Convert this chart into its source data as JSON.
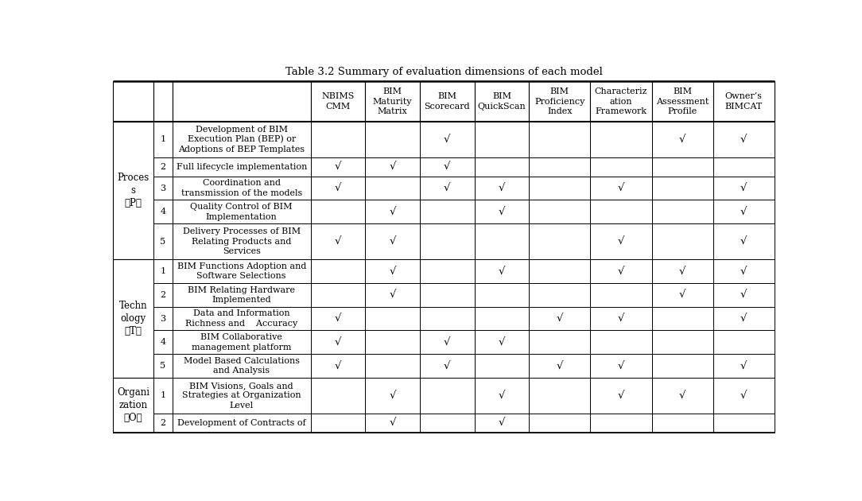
{
  "title": "Table 3.2 Summary of evaluation dimensions of each model",
  "col_headers": [
    "NBIMS\nCMM",
    "BIM\nMaturity\nMatrix",
    "BIM\nScorecard",
    "BIM\nQuickScan",
    "BIM\nProficiency\nIndex",
    "Characteriz\nation\nFramework",
    "BIM\nAssessment\nProfile",
    "Owner’s\nBIMCAT"
  ],
  "row_groups": [
    {
      "group_label": "Proces\ns\n（P）",
      "rows": [
        {
          "num": "1",
          "desc": "Development of BIM\nExecution Plan (BEP) or\nAdoptions of BEP Templates",
          "checks": [
            0,
            0,
            1,
            0,
            0,
            0,
            1,
            1
          ]
        },
        {
          "num": "2",
          "desc": "Full lifecycle implementation",
          "checks": [
            1,
            1,
            1,
            0,
            0,
            0,
            0,
            0
          ]
        },
        {
          "num": "3",
          "desc": "Coordination and\ntransmission of the models",
          "checks": [
            1,
            0,
            1,
            1,
            0,
            1,
            0,
            1
          ]
        },
        {
          "num": "4",
          "desc": "Quality Control of BIM\nImplementation",
          "checks": [
            0,
            1,
            0,
            1,
            0,
            0,
            0,
            1
          ]
        },
        {
          "num": "5",
          "desc": "Delivery Processes of BIM\nRelating Products and\nServices",
          "checks": [
            1,
            1,
            0,
            0,
            0,
            1,
            0,
            1
          ]
        }
      ]
    },
    {
      "group_label": "Techn\nology\n（T）",
      "rows": [
        {
          "num": "1",
          "desc": "BIM Functions Adoption and\nSoftware Selections",
          "checks": [
            0,
            1,
            0,
            1,
            0,
            1,
            1,
            1
          ]
        },
        {
          "num": "2",
          "desc": "BIM Relating Hardware\nImplemented",
          "checks": [
            0,
            1,
            0,
            0,
            0,
            0,
            1,
            1
          ]
        },
        {
          "num": "3",
          "desc": "Data and Information\nRichness and    Accuracy",
          "checks": [
            1,
            0,
            0,
            0,
            1,
            1,
            0,
            1
          ]
        },
        {
          "num": "4",
          "desc": "BIM Collaborative\nmanagement platform",
          "checks": [
            1,
            0,
            1,
            1,
            0,
            0,
            0,
            0
          ]
        },
        {
          "num": "5",
          "desc": "Model Based Calculations\nand Analysis",
          "checks": [
            1,
            0,
            1,
            0,
            1,
            1,
            0,
            1
          ]
        }
      ]
    },
    {
      "group_label": "Organi\nzation\n（O）",
      "rows": [
        {
          "num": "1",
          "desc": "BIM Visions, Goals and\nStrategies at Organization\nLevel",
          "checks": [
            0,
            1,
            0,
            1,
            0,
            1,
            1,
            1
          ]
        },
        {
          "num": "2",
          "desc": "Development of Contracts of",
          "checks": [
            0,
            1,
            0,
            1,
            0,
            0,
            0,
            0
          ]
        }
      ]
    }
  ],
  "bg_color": "#ffffff",
  "text_color": "#000000",
  "border_color": "#000000",
  "check_symbol": "√",
  "font_size_header": 8.0,
  "font_size_body": 8.0,
  "font_size_group": 8.5,
  "font_size_title": 9.5
}
